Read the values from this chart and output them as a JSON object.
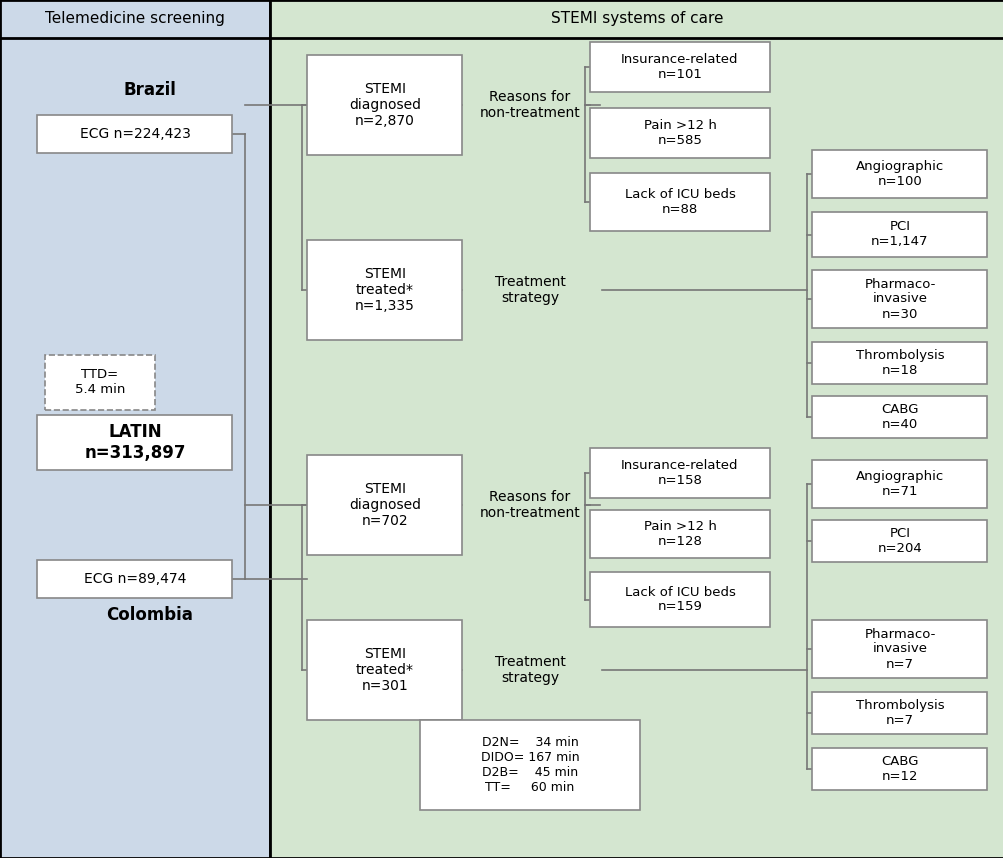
{
  "fig_width": 10.04,
  "fig_height": 8.58,
  "dpi": 100,
  "bg_left": "#ccd9e8",
  "bg_right": "#d4e6d0",
  "line_color": "#777777",
  "box_edge": "#888888",
  "header_left": "Telemedicine screening",
  "header_right": "STEMI systems of care",
  "brazil_label": "Brazil",
  "colombia_label": "Colombia",
  "latin_line1": "LATIN",
  "latin_line2": "n=313,897",
  "ttd_label": "TTD=\n5.4 min",
  "ecg_brazil": "ECG n=224,423",
  "ecg_colombia": "ECG n=89,474",
  "brazil_diag": "STEMI\ndiagnosed\nn=2,870",
  "brazil_treat": "STEMI\ntreated*\nn=1,335",
  "colombia_diag": "STEMI\ndiagnosed\nn=702",
  "colombia_treat": "STEMI\ntreated*\nn=301",
  "reasons_brazil": "Reasons for\nnon-treatment",
  "reasons_colombia": "Reasons for\nnon-treatment",
  "treatment_brazil": "Treatment\nstrategy",
  "treatment_colombia": "Treatment\nstrategy",
  "brazil_ins": "Insurance-related\nn=101",
  "brazil_pain": "Pain >12 h\nn=585",
  "brazil_icu": "Lack of ICU beds\nn=88",
  "colombia_ins": "Insurance-related\nn=158",
  "colombia_pain": "Pain >12 h\nn=128",
  "colombia_icu": "Lack of ICU beds\nn=159",
  "brazil_angio": "Angiographic\nn=100",
  "brazil_pci": "PCI\nn=1,147",
  "brazil_pharma": "Pharmaco-\ninvasive\nn=30",
  "brazil_thrombo": "Thrombolysis\nn=18",
  "brazil_cabg": "CABG\nn=40",
  "colombia_angio": "Angiographic\nn=71",
  "colombia_pci": "PCI\nn=204",
  "colombia_pharma": "Pharmaco-\ninvasive\nn=7",
  "colombia_thrombo": "Thrombolysis\nn=7",
  "colombia_cabg": "CABG\nn=12",
  "timing_text": "D2N=    34 min\nDIDO= 167 min\nD2B=    45 min\nTT=     60 min"
}
